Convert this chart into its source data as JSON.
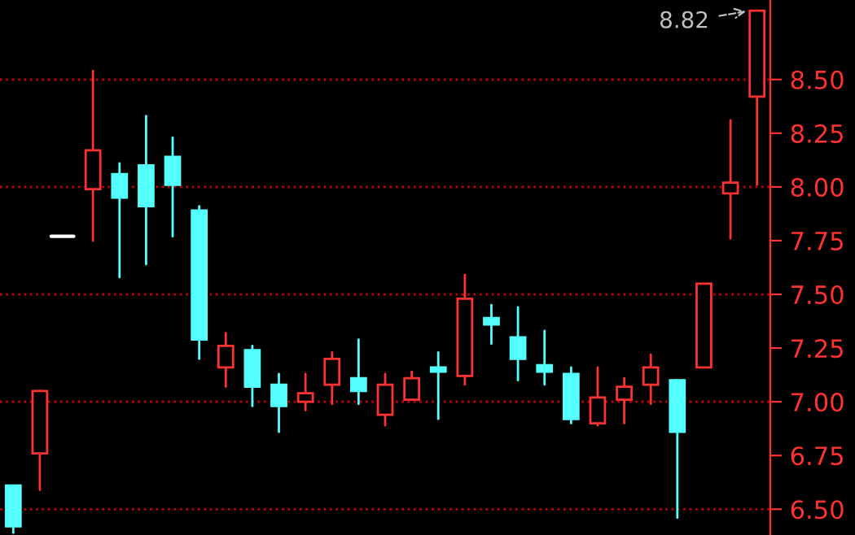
{
  "chart_data": {
    "type": "candlestick",
    "categories": [
      null,
      null,
      null,
      null,
      null,
      null,
      null,
      null,
      null,
      null,
      null,
      null,
      null,
      null,
      null,
      null,
      null,
      null,
      null,
      null,
      null,
      null,
      null,
      null,
      null,
      null,
      null,
      null,
      null
    ],
    "ohlc": [
      [
        6.61,
        6.61,
        6.39,
        6.42
      ],
      [
        6.76,
        7.05,
        6.59,
        7.05
      ],
      [
        7.77,
        7.77,
        7.77,
        7.77
      ],
      [
        7.99,
        8.54,
        7.75,
        8.17
      ],
      [
        8.06,
        8.11,
        7.58,
        7.95
      ],
      [
        8.1,
        8.33,
        7.64,
        7.91
      ],
      [
        8.14,
        8.23,
        7.77,
        8.01
      ],
      [
        7.89,
        7.91,
        7.2,
        7.29
      ],
      [
        7.16,
        7.32,
        7.07,
        7.26
      ],
      [
        7.24,
        7.26,
        6.98,
        7.07
      ],
      [
        7.08,
        7.13,
        6.86,
        6.98
      ],
      [
        7.0,
        7.13,
        6.96,
        7.04
      ],
      [
        7.08,
        7.23,
        6.99,
        7.2
      ],
      [
        7.11,
        7.29,
        6.99,
        7.05
      ],
      [
        6.94,
        7.13,
        6.89,
        7.08
      ],
      [
        7.01,
        7.14,
        7.01,
        7.11
      ],
      [
        7.16,
        7.23,
        6.92,
        7.14
      ],
      [
        7.12,
        7.59,
        7.08,
        7.48
      ],
      [
        7.39,
        7.45,
        7.27,
        7.36
      ],
      [
        7.3,
        7.44,
        7.1,
        7.2
      ],
      [
        7.17,
        7.33,
        7.08,
        7.14
      ],
      [
        7.13,
        7.16,
        6.9,
        6.92
      ],
      [
        6.9,
        7.16,
        6.89,
        7.02
      ],
      [
        7.01,
        7.11,
        6.9,
        7.07
      ],
      [
        7.08,
        7.22,
        6.99,
        7.16
      ],
      [
        7.1,
        7.1,
        6.46,
        6.86
      ],
      [
        7.16,
        7.55,
        7.16,
        7.55
      ],
      [
        7.97,
        8.31,
        7.76,
        8.02
      ],
      [
        8.42,
        8.82,
        8.01,
        8.82
      ]
    ],
    "colors": [
      "#54ffff",
      "#ff3232",
      "#ffffff",
      "#ff3232",
      "#54ffff",
      "#54ffff",
      "#54ffff",
      "#54ffff",
      "#ff3232",
      "#54ffff",
      "#54ffff",
      "#ff3232",
      "#ff3232",
      "#54ffff",
      "#ff3232",
      "#ff3232",
      "#54ffff",
      "#ff3232",
      "#54ffff",
      "#54ffff",
      "#54ffff",
      "#54ffff",
      "#ff3232",
      "#ff3232",
      "#ff3232",
      "#54ffff",
      "#ff3232",
      "#ff3232",
      "#ff3232"
    ],
    "ylim": [
      6.38,
      8.87
    ],
    "yticks": [
      {
        "value": 6.5,
        "label": "6.50"
      },
      {
        "value": 6.75,
        "label": "6.75"
      },
      {
        "value": 7.0,
        "label": "7.00"
      },
      {
        "value": 7.25,
        "label": "7.25"
      },
      {
        "value": 7.5,
        "label": "7.50"
      },
      {
        "value": 7.75,
        "label": "7.75"
      },
      {
        "value": 8.0,
        "label": "8.00"
      },
      {
        "value": 8.25,
        "label": "8.25"
      },
      {
        "value": 8.5,
        "label": "8.50"
      }
    ],
    "tick_labels": "y",
    "grid": false,
    "ref_lines": [
      {
        "axis": "y",
        "value": 6.5,
        "color": "#c00000",
        "line_style": "dotted"
      },
      {
        "axis": "y",
        "value": 7.0,
        "color": "#c00000",
        "line_style": "dotted"
      },
      {
        "axis": "y",
        "value": 7.5,
        "color": "#c00000",
        "line_style": "dotted"
      },
      {
        "axis": "y",
        "value": 8.0,
        "color": "#c00000",
        "line_style": "dotted"
      },
      {
        "axis": "y",
        "value": 8.5,
        "color": "#c00000",
        "line_style": "dotted"
      }
    ],
    "annotations": [
      "8.82"
    ]
  }
}
